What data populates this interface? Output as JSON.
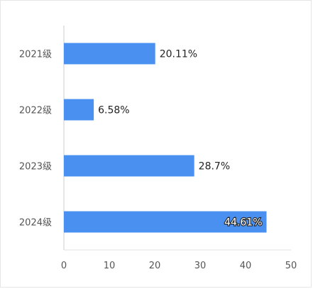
{
  "chart_data": {
    "type": "bar",
    "orientation": "horizontal",
    "categories": [
      "2021级",
      "2022级",
      "2023级",
      "2024级"
    ],
    "values": [
      20.11,
      6.58,
      28.7,
      44.61
    ],
    "value_labels": [
      "20.11%",
      "6.58%",
      "28.7%",
      "44.61%"
    ],
    "title": "",
    "xlabel": "",
    "ylabel": "",
    "xlim": [
      0,
      50
    ],
    "xticks": [
      "0",
      "10",
      "20",
      "30",
      "40",
      "50"
    ],
    "grid": false,
    "legend": "none",
    "bar_color": "#4a90f0"
  }
}
